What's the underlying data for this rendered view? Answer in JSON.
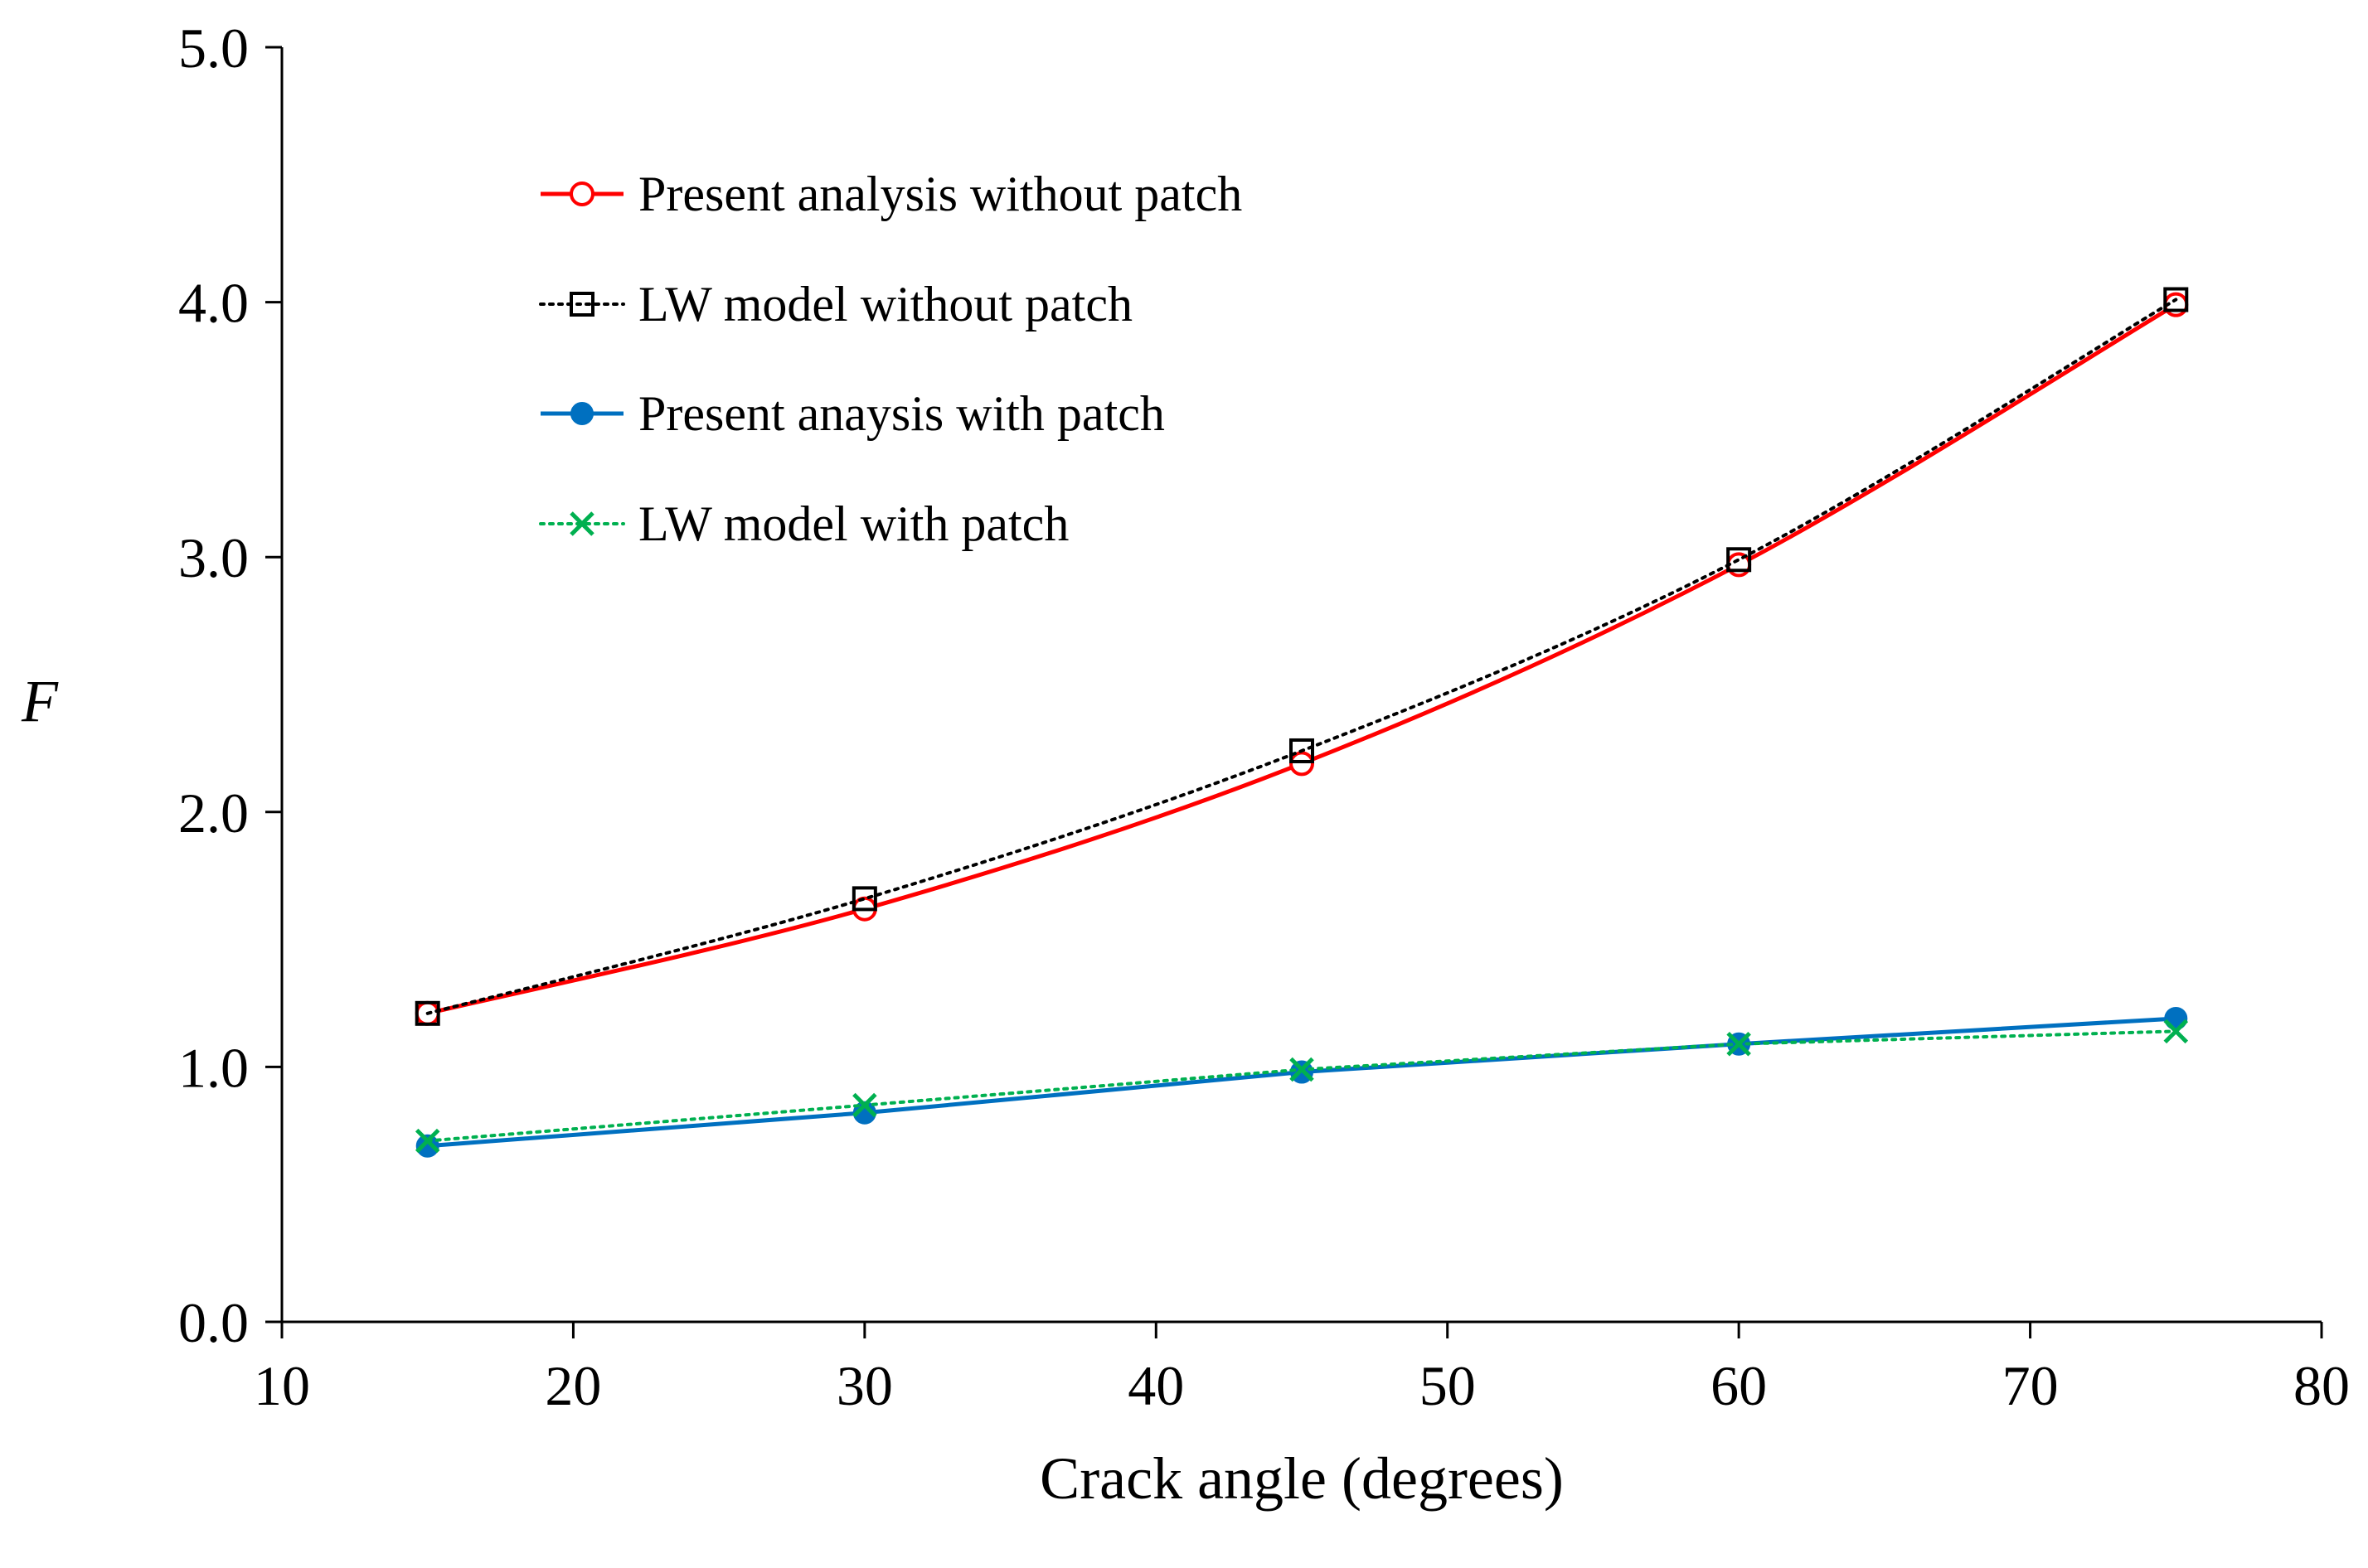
{
  "chart_data": {
    "type": "line",
    "title": "",
    "xlabel": "Crack angle (degrees)",
    "ylabel": "F",
    "xlim": [
      10,
      80
    ],
    "ylim": [
      0.0,
      5.0
    ],
    "x_ticks": [
      10,
      20,
      30,
      40,
      50,
      60,
      70,
      80
    ],
    "y_ticks": [
      0.0,
      1.0,
      2.0,
      3.0,
      4.0,
      5.0
    ],
    "x_tick_labels": [
      "10",
      "20",
      "30",
      "40",
      "50",
      "60",
      "70",
      "80"
    ],
    "y_tick_labels": [
      "0.0",
      "1.0",
      "2.0",
      "3.0",
      "4.0",
      "5.0"
    ],
    "grid": false,
    "legend_position": "top-left",
    "x": [
      15,
      30,
      45,
      60,
      75
    ],
    "series": [
      {
        "name": "Present analysis without patch",
        "values": [
          1.21,
          1.62,
          2.19,
          2.97,
          3.99
        ],
        "color": "#ff0000",
        "line": "solid",
        "marker": "open-circle"
      },
      {
        "name": "LW model without patch",
        "values": [
          1.21,
          1.66,
          2.24,
          2.99,
          4.01
        ],
        "color": "#000000",
        "line": "dotted",
        "marker": "open-square"
      },
      {
        "name": "Present anaysis with patch",
        "values": [
          0.69,
          0.82,
          0.98,
          1.09,
          1.19
        ],
        "color": "#0070c0",
        "line": "solid",
        "marker": "filled-circle"
      },
      {
        "name": "LW model with patch",
        "values": [
          0.71,
          0.85,
          0.99,
          1.09,
          1.14
        ],
        "color": "#00b050",
        "line": "dotted",
        "marker": "x"
      }
    ]
  }
}
